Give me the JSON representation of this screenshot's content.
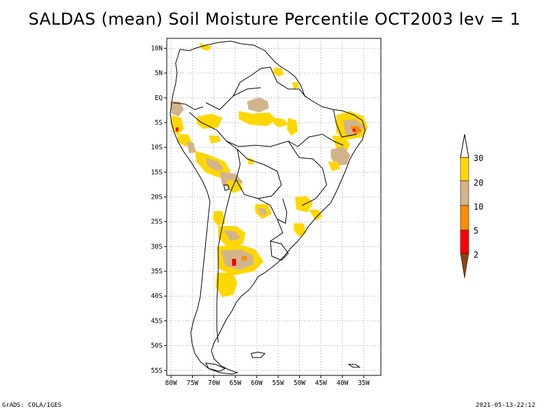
{
  "title": "SALDAS (mean) Soil Moisture Percentile OCT2003 lev = 1",
  "lat_labels": [
    "10N",
    "5N",
    "EQ",
    "5S",
    "10S",
    "15S",
    "20S",
    "25S",
    "30S",
    "35S",
    "40S",
    "45S",
    "50S",
    "55S"
  ],
  "lon_labels": [
    "80W",
    "75W",
    "70W",
    "65W",
    "60W",
    "55W",
    "50W",
    "45W",
    "40W",
    "35W"
  ],
  "colorbar": {
    "labels": [
      "2",
      "5",
      "10",
      "20",
      "30"
    ],
    "colors": [
      "#8b4513",
      "#ff0000",
      "#ff8c00",
      "#d2b48c",
      "#ffd700",
      "#ffffff"
    ]
  },
  "footer": {
    "left": "GrADS: COLA/IGES",
    "right": "2021-05-13-22:12"
  }
}
